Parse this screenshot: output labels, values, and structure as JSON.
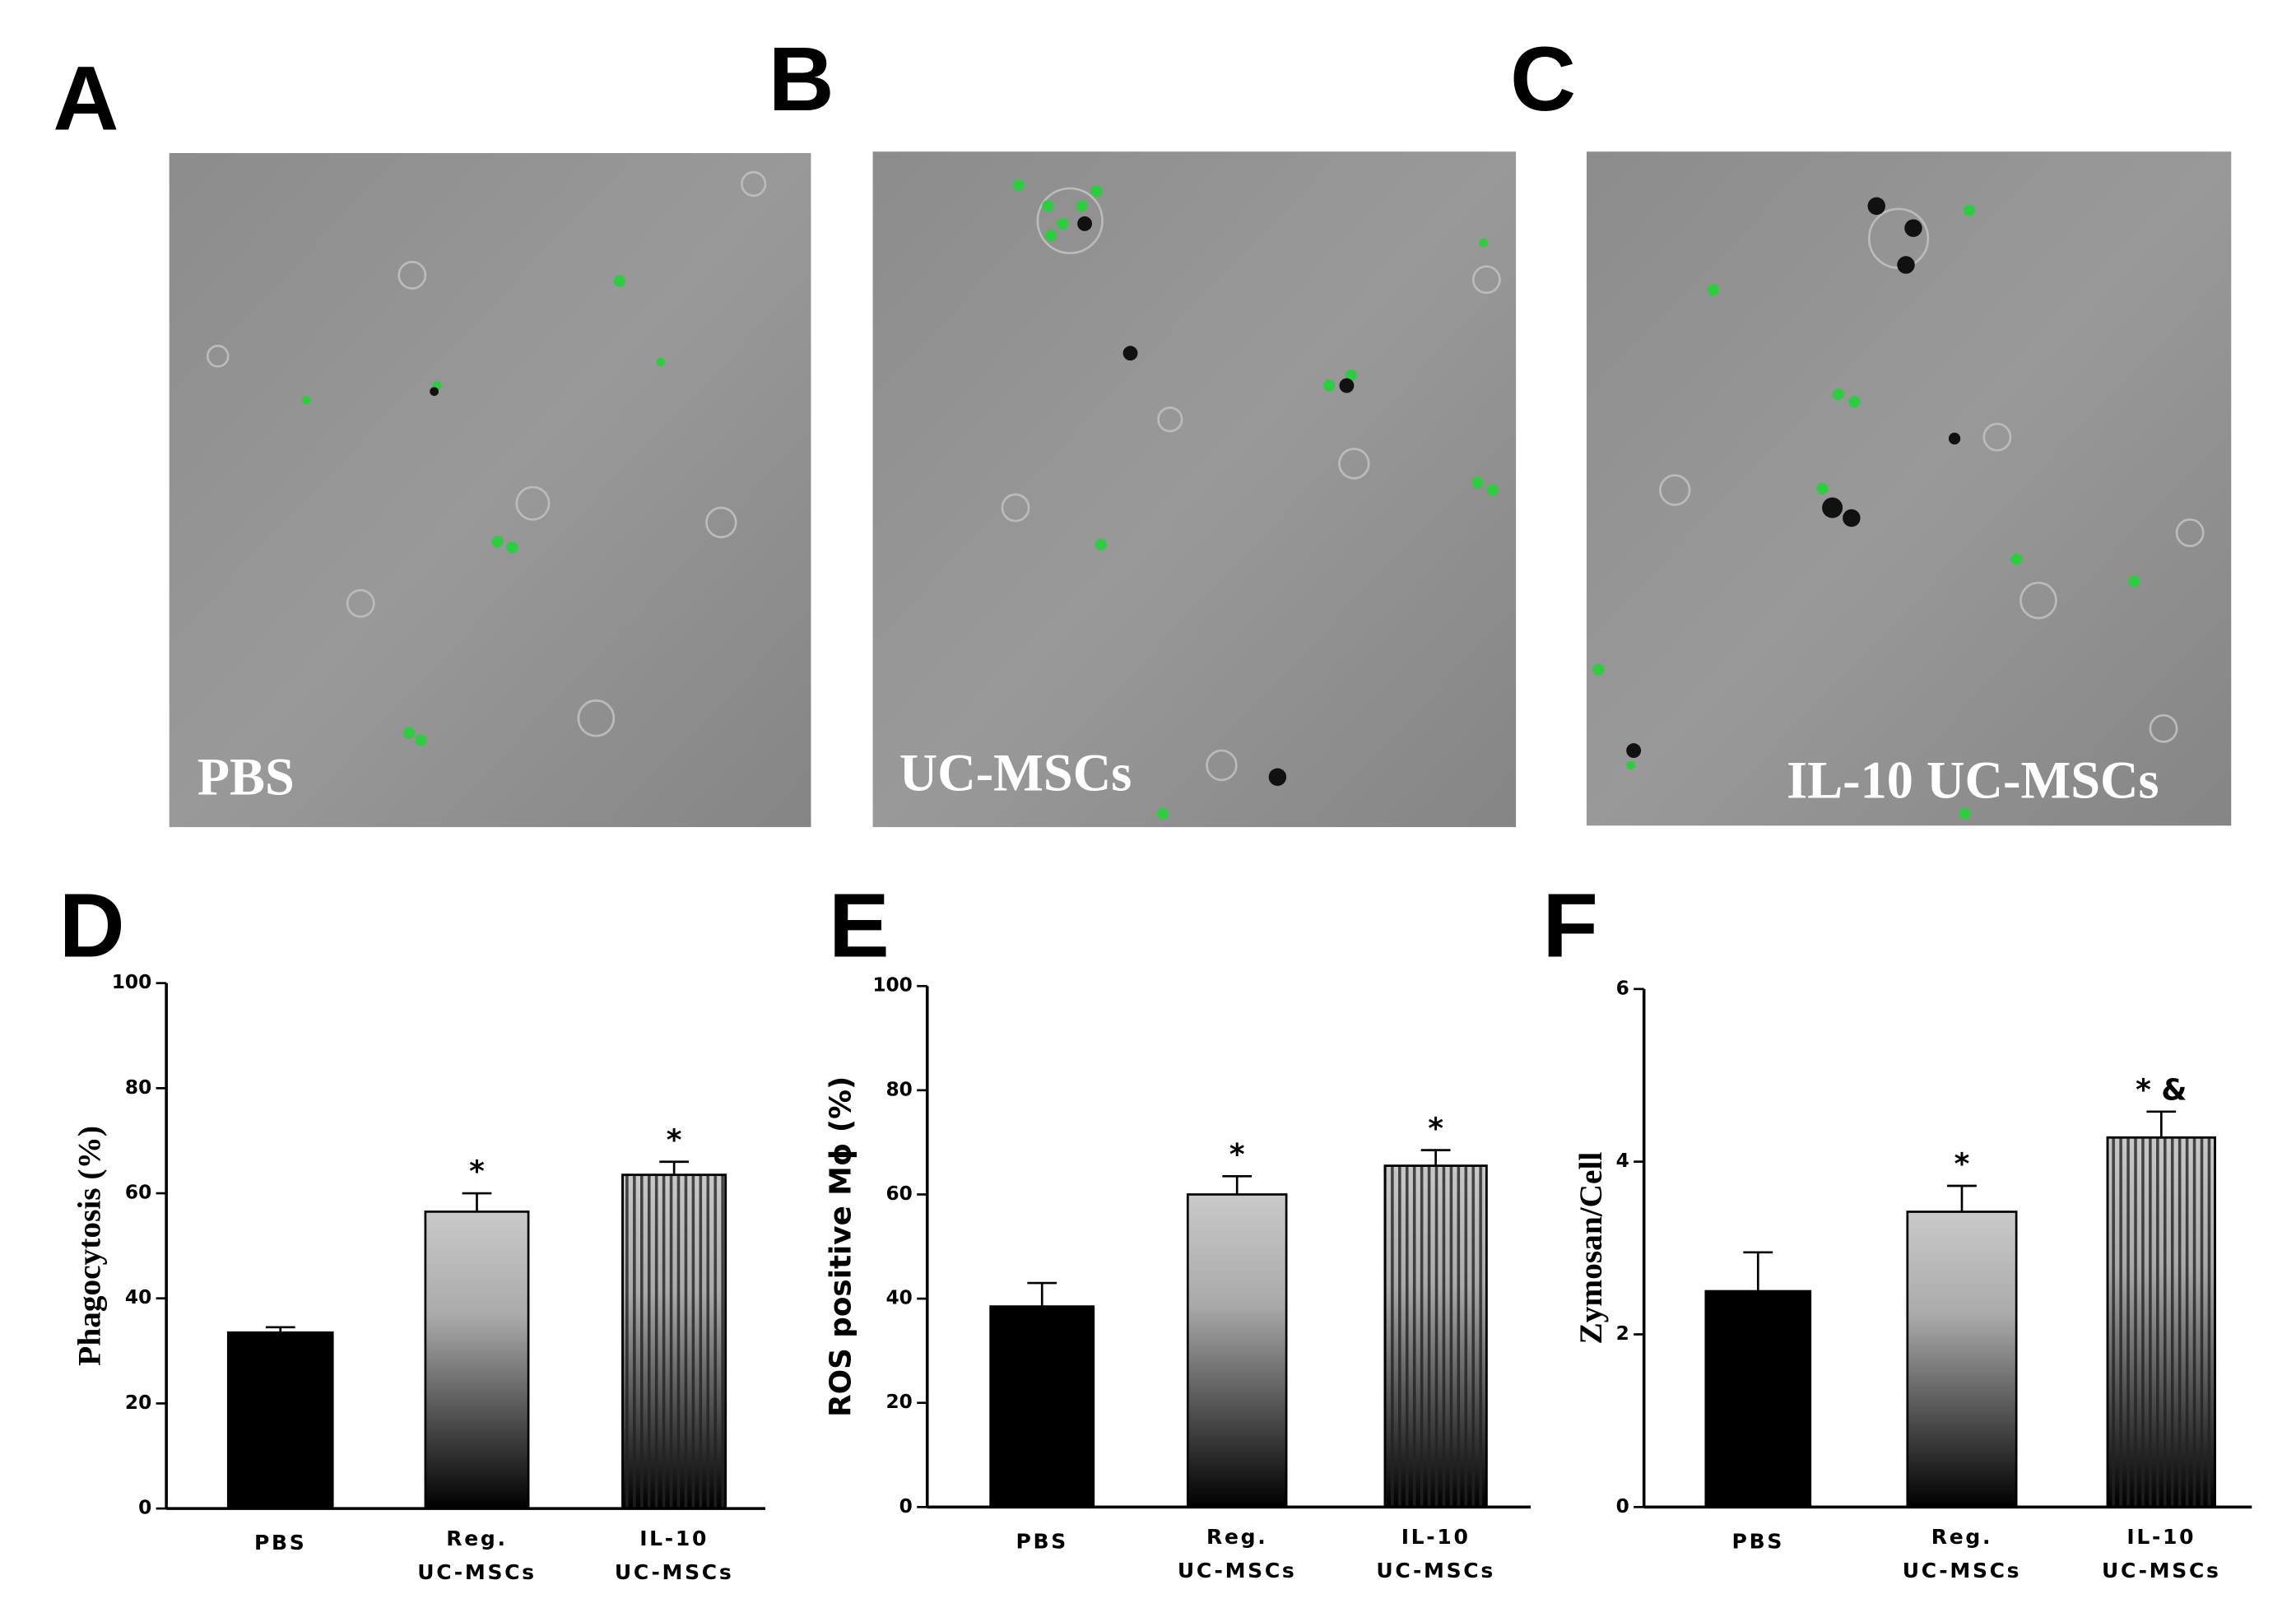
{
  "panel_labels": [
    "A",
    "B",
    "C",
    "D",
    "E",
    "F"
  ],
  "images": [
    {
      "label": "PBS"
    },
    {
      "label": "UC-MSCs"
    },
    {
      "label": "IL-10 UC-MSCs"
    }
  ],
  "chart_data": [
    {
      "type": "bar",
      "ylabel": "Phagocytosis (%)",
      "categories": [
        "PBS",
        "Reg. UC-MSCs",
        "IL-10 UC-MSCs"
      ],
      "values": [
        33.5,
        56.5,
        63.5
      ],
      "errors": [
        1,
        3.5,
        2.5
      ],
      "bar_labels": [
        null,
        "*",
        "*"
      ],
      "color": "#000000",
      "bar_styles": [
        "solid",
        "gradient",
        "striped"
      ],
      "ylim": [
        0,
        100
      ],
      "yticks": [
        0,
        20,
        40,
        60,
        80,
        100
      ]
    },
    {
      "type": "bar",
      "ylabel": "ROS positive Mϕ (%)",
      "categories": [
        "PBS",
        "Reg. UC-MSCs",
        "IL-10 UC-MSCs"
      ],
      "values": [
        38.5,
        60,
        65.5
      ],
      "errors": [
        4.5,
        3.5,
        3
      ],
      "bar_labels": [
        null,
        "*",
        "*"
      ],
      "color": "#000000",
      "bar_styles": [
        "solid",
        "gradient",
        "striped"
      ],
      "ylim": [
        0,
        100
      ],
      "yticks": [
        0,
        20,
        40,
        60,
        80,
        100
      ]
    },
    {
      "type": "bar",
      "ylabel": "Zymosan/Cell",
      "categories": [
        "PBS",
        "Reg. UC-MSCs",
        "IL-10 UC-MSCs"
      ],
      "values": [
        2.5,
        3.42,
        4.28
      ],
      "errors": [
        0.45,
        0.3,
        0.3
      ],
      "bar_labels": [
        null,
        "*",
        "* &"
      ],
      "color": "#000000",
      "bar_styles": [
        "solid",
        "gradient",
        "striped"
      ],
      "ylim": [
        0,
        6
      ],
      "yticks": [
        0,
        2,
        4,
        6
      ]
    }
  ]
}
